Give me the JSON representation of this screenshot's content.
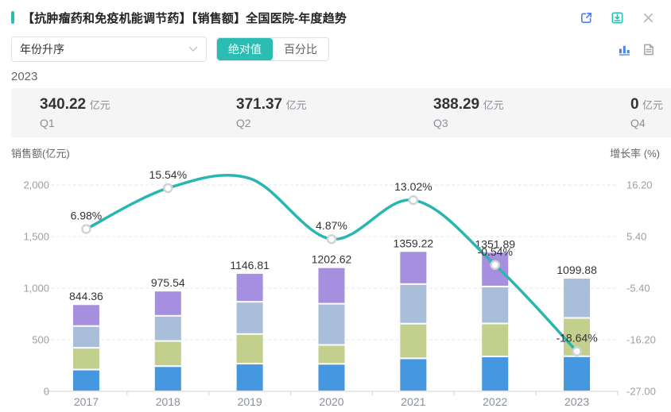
{
  "header": {
    "title": "【抗肿瘤药和免疫机能调节药】【销售额】全国医院-年度趋势",
    "icons": [
      "open-external",
      "download",
      "close"
    ]
  },
  "toolbar": {
    "sort_select": {
      "value": "年份升序"
    },
    "mode_toggle": {
      "options": [
        "绝对值",
        "百分比"
      ],
      "selected": "绝对值"
    },
    "view_icons": [
      "bar-chart-view",
      "data-table-view"
    ]
  },
  "year_summary": {
    "year": "2023",
    "unit": "亿元",
    "items": [
      {
        "label": "Q1",
        "value": "340.22"
      },
      {
        "label": "Q2",
        "value": "371.37"
      },
      {
        "label": "Q3",
        "value": "388.29"
      },
      {
        "label": "Q4",
        "value": "0"
      }
    ]
  },
  "chart_data": {
    "type": "bar",
    "subtype": "stacked-bars-with-smooth-growth-line",
    "categories": [
      "2017",
      "2018",
      "2019",
      "2020",
      "2021",
      "2022",
      "2023"
    ],
    "bar_totals": [
      844.36,
      975.54,
      1146.81,
      1202.62,
      1359.22,
      1351.89,
      1099.88
    ],
    "bar_total_labels": [
      "844.36",
      "975.54",
      "1146.81",
      "1202.62",
      "1359.22",
      "1351.89",
      "1099.88"
    ],
    "series": [
      {
        "name": "Q1",
        "color": "#4597e0",
        "values": [
          211.0,
          244.0,
          268.5,
          266.4,
          319.8,
          338.0,
          340.22
        ]
      },
      {
        "name": "Q2",
        "color": "#c3cf8d",
        "values": [
          211.0,
          244.0,
          287.2,
          183.8,
          336.0,
          319.7,
          371.37
        ]
      },
      {
        "name": "Q3",
        "color": "#a9bfd9",
        "values": [
          211.0,
          244.0,
          312.4,
          399.1,
          383.7,
          358.4,
          388.29
        ]
      },
      {
        "name": "Q4",
        "color": "#a78fdf",
        "values": [
          211.36,
          243.54,
          278.71,
          353.32,
          319.72,
          335.79,
          0
        ]
      }
    ],
    "segment_values_note": "2017-2022 quarterly segment values estimated from bar segment heights; 2023 quarters shown in summary strip",
    "line_series": {
      "name": "增长率",
      "color": "#2ab6b0",
      "values": [
        6.98,
        15.54,
        17.56,
        4.87,
        13.02,
        -0.54,
        -18.64
      ],
      "labels": [
        "6.98%",
        "15.54%",
        null,
        "4.87%",
        "13.02%",
        "-0.54%",
        "-18.64%"
      ],
      "marker_visible": [
        true,
        true,
        false,
        true,
        true,
        true,
        true
      ]
    },
    "left_axis": {
      "title": "销售额(亿元)",
      "ticks": [
        "0",
        "500",
        "1,000",
        "1,500",
        "2,000"
      ],
      "min": 0
    },
    "right_axis": {
      "title": "增长率 (%)",
      "ticks": [
        "-27.00",
        "-16.20",
        "-5.40",
        "5.40",
        "16.20"
      ],
      "min": -27,
      "max": 27
    },
    "grid": "dashed horizontal",
    "legend": "none"
  },
  "colors": {
    "accent": "#2bbdb2",
    "line": "#2ab6b0",
    "bar_q1": "#4597e0",
    "bar_q2": "#c3cf8d",
    "bar_q3": "#a9bfd9",
    "bar_q4": "#a78fdf",
    "icon_external": "#4e7cf0",
    "icon_download": "#2bbdb2",
    "icon_close": "#b5b9bf",
    "icon_chart_active": "#4a86e8",
    "icon_doc": "#9aa3ad",
    "summary_bg": "#f5f5f6"
  }
}
